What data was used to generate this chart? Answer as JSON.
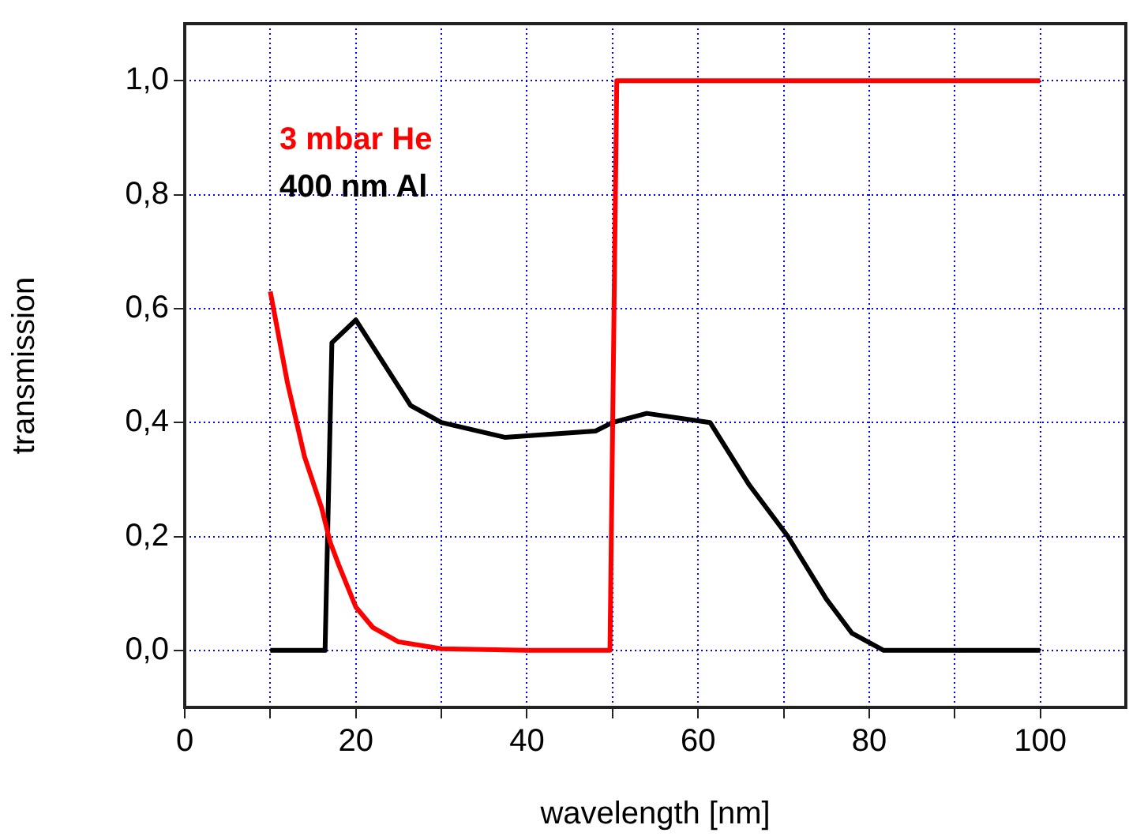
{
  "chart_data": {
    "type": "line",
    "xlabel": "wavelength [nm]",
    "ylabel": "transmission",
    "xlim": [
      0,
      110
    ],
    "ylim": [
      -0.1,
      1.1
    ],
    "xticks": [
      0,
      {
        "value": 10,
        "label": null
      },
      20,
      {
        "value": 30,
        "label": null
      },
      40,
      {
        "value": 50,
        "label": null
      },
      60,
      {
        "value": 70,
        "label": null
      },
      80,
      {
        "value": 90,
        "label": null
      },
      100
    ],
    "yticks": [
      {
        "value": 0,
        "label": "0,0"
      },
      {
        "value": 0.2,
        "label": "0,2"
      },
      {
        "value": 0.4,
        "label": "0,4"
      },
      {
        "value": 0.6,
        "label": "0,6"
      },
      {
        "value": 0.8,
        "label": "0,8"
      },
      {
        "value": 1,
        "label": "1,0"
      }
    ],
    "grid": true,
    "legend": "top left",
    "marker": "none",
    "line_style": "solid",
    "series": [
      {
        "name": "3 mbar He",
        "color": "#ff0000",
        "x": [
          10,
          12,
          14,
          16,
          17,
          18,
          20,
          22,
          25,
          30,
          40,
          49.7,
          50.5,
          100
        ],
        "values": [
          0.63,
          0.47,
          0.34,
          0.25,
          0.19,
          0.15,
          0.076,
          0.04,
          0.015,
          0.003,
          0,
          0,
          1,
          1
        ]
      },
      {
        "name": "400 nm Al",
        "color": "#000000",
        "x": [
          10,
          16.4,
          17.2,
          20,
          26.4,
          30,
          37.4,
          48,
          50,
          54,
          61.4,
          66,
          70.5,
          75,
          78,
          81.7,
          100
        ],
        "values": [
          0,
          0,
          0.54,
          0.58,
          0.43,
          0.4,
          0.374,
          0.385,
          0.4,
          0.416,
          0.4,
          0.29,
          0.2,
          0.09,
          0.03,
          0,
          0
        ]
      }
    ]
  }
}
